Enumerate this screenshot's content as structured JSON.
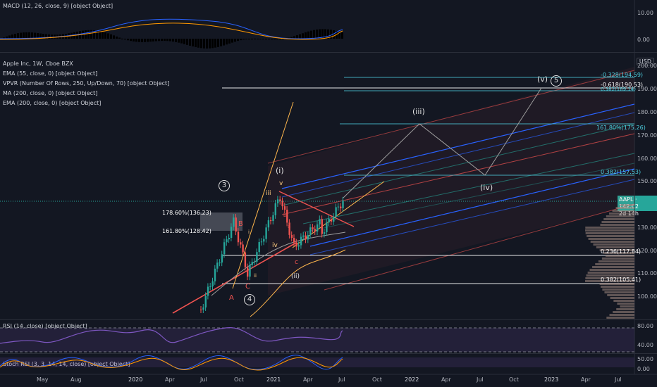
{
  "indicators": {
    "macd": "MACD (12, 26, close, 9) [object Object]",
    "rsi": "RSI (14, close) [object Object]",
    "stoch": "Stoch RSI (3, 3, 14, 14, close) [object Object]",
    "main_list": [
      "Apple Inc, 1W, Cboe BZX",
      "EMA (55, close, 0) [object Object]",
      "VPVR (Number Of Rows, 250, Up/Down, 70) [object Object]",
      "MA (200, close, 0) [object Object]",
      "EMA (200, close, 0) [object Object]"
    ]
  },
  "currency": "USD",
  "price_tag": {
    "symbol": "AAPL",
    "price": "142.02",
    "countdown": "2d 14h"
  },
  "macd_axis": [
    "10.00",
    "0.00"
  ],
  "rsi_axis": [
    "80.00",
    "40.00"
  ],
  "stoch_axis": [
    "50.00",
    "0.00"
  ],
  "price_axis": [
    "200.00",
    "190.00",
    "180.00",
    "170.00",
    "160.00",
    "150.00",
    "130.00",
    "120.00",
    "110.00",
    "100.00"
  ],
  "time_axis": [
    "May",
    "Aug",
    "2020",
    "Apr",
    "Jul",
    "Oct",
    "2021",
    "Apr",
    "Jul",
    "Oct",
    "2022",
    "Apr",
    "Jul",
    "Oct",
    "2023",
    "Apr",
    "Jul"
  ],
  "fib_labels": [
    "-0.328(194.59)",
    "-0.618(190.53)",
    "0.382(189.14)",
    "161.80%(175.26)",
    "0.382(157.53)",
    "0.236(117.84)",
    "0.382(105.41)",
    "178.60%(136.23)",
    "161.80%(128.42)"
  ],
  "waves": {
    "circle3": "3",
    "circle4": "4",
    "circle5": "5",
    "i": "(i)",
    "ii": "(ii)",
    "iii": "(iii)",
    "iv": "(iv)",
    "v": "(v)",
    "small_iii": "iii",
    "small_iv": "iv",
    "small_v": "v",
    "A": "A",
    "B": "B",
    "C": "C",
    "c": "c",
    "i_small": "i",
    "ii_small": "ii",
    "a_small": "a",
    "b_small": "b"
  },
  "colors": {
    "bg": "#131722",
    "up": "#26a69a",
    "down": "#ef5350",
    "rsi": "#7e57c2"
  }
}
